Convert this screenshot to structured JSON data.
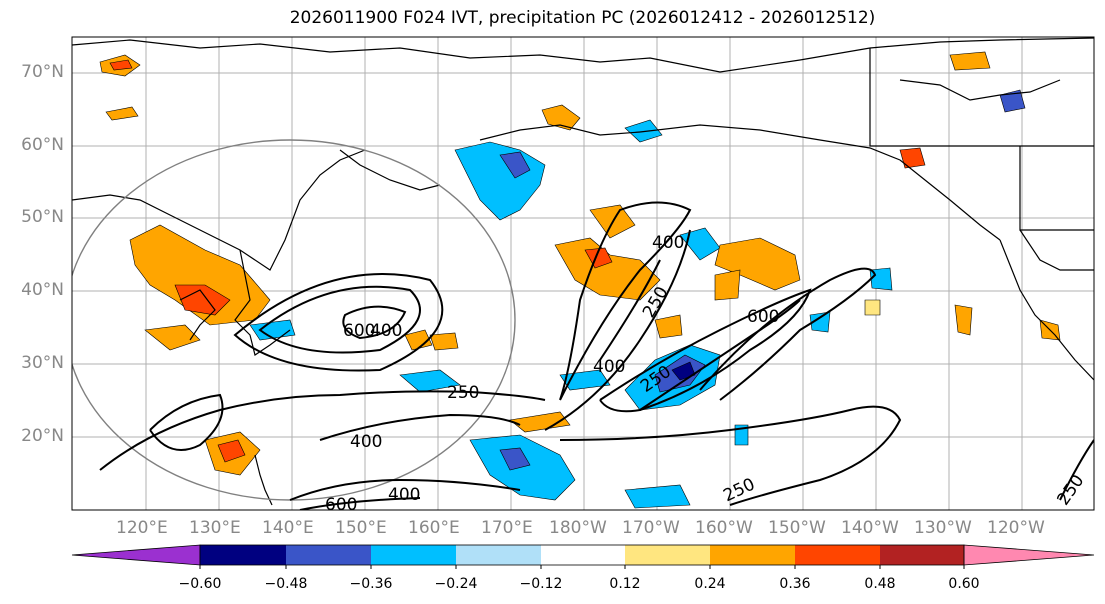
{
  "title": "2026011900 F024 IVT, precipitation PC (2026012412 - 2026012512)",
  "lat_labels": [
    "70°N",
    "60°N",
    "50°N",
    "40°N",
    "30°N",
    "20°N"
  ],
  "lon_labels": [
    "120°E",
    "130°E",
    "140°E",
    "150°E",
    "160°E",
    "170°E",
    "180°W",
    "170°W",
    "160°W",
    "150°W",
    "140°W",
    "130°W",
    "120°W"
  ],
  "contour_labels": [
    "400",
    "250",
    "600",
    "400",
    "400",
    "250",
    "600",
    "250",
    "400",
    "400",
    "600",
    "250",
    "250"
  ],
  "colorbar": {
    "colors": [
      "#9b30d0",
      "#000080",
      "#3a55c8",
      "#00bfff",
      "#b0e0f8",
      "#ffffff",
      "#ffe680",
      "#ffa500",
      "#ff4500",
      "#b22222",
      "#ff88b0"
    ],
    "ticks": [
      "−0.60",
      "−0.48",
      "−0.36",
      "−0.24",
      "−0.12",
      "0.12",
      "0.24",
      "0.36",
      "0.48",
      "0.60"
    ]
  }
}
